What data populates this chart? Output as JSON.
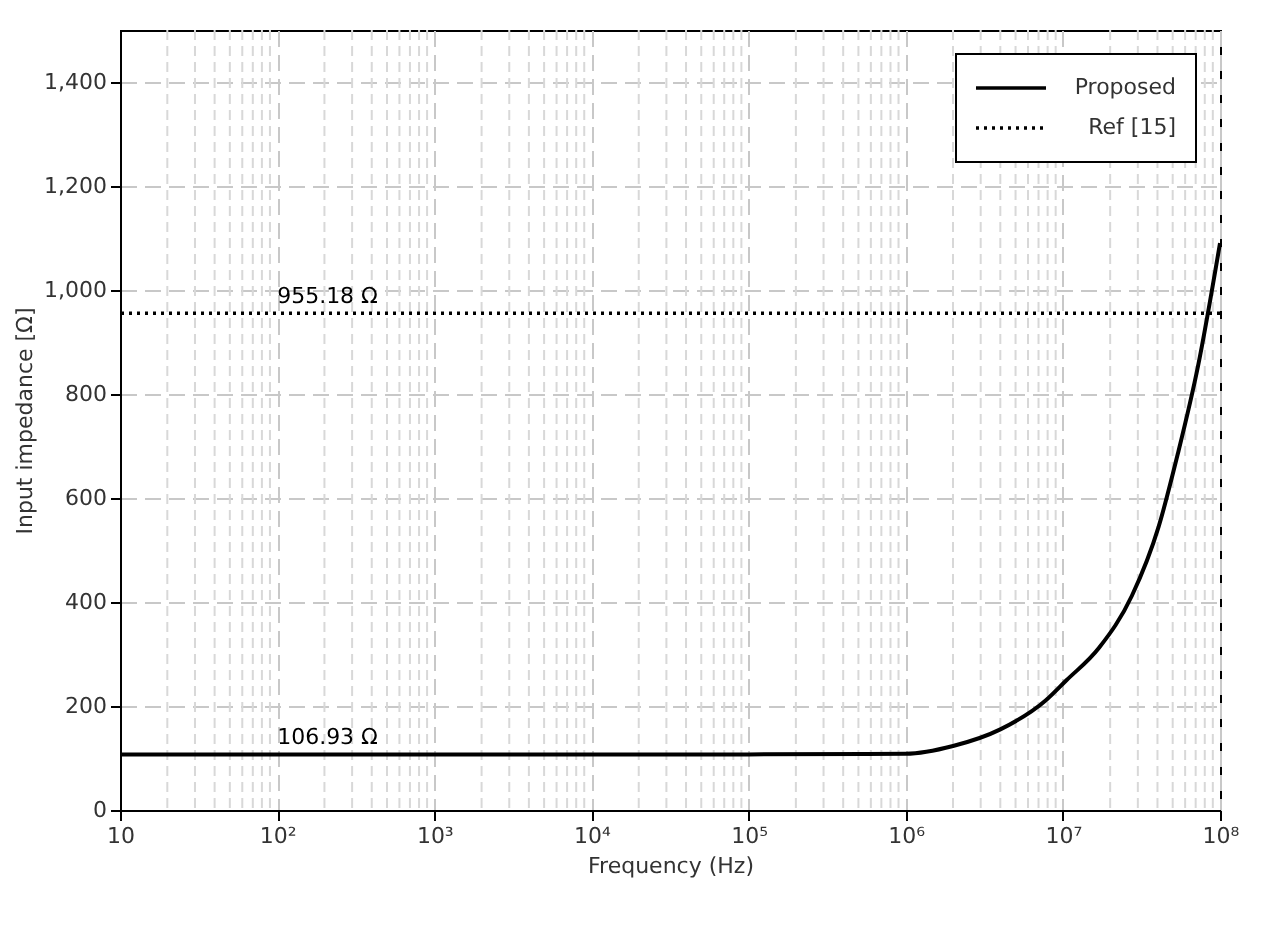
{
  "chart_data": {
    "type": "line",
    "xlabel": "Frequency (Hz)",
    "ylabel": "Input impedance [Ω]",
    "log": "x",
    "grid": true,
    "legend": "top right",
    "line_style": "solid",
    "marker": "none",
    "xlim": [
      10,
      100000000
    ],
    "xticks": [
      10,
      {
        "value": 100,
        "label": "10²"
      },
      {
        "value": 1000,
        "label": "10³"
      },
      {
        "value": 10000,
        "label": "10⁴"
      },
      {
        "value": 100000,
        "label": "10⁵"
      },
      {
        "value": 1000000,
        "label": "10⁶"
      },
      {
        "value": 10000000,
        "label": "10⁷"
      },
      {
        "value": 100000000,
        "label": "10⁸"
      }
    ],
    "ylim": [
      0,
      1500
    ],
    "yticks": [
      0,
      200,
      400,
      600,
      800,
      {
        "value": 1000,
        "label": "1,000"
      },
      {
        "value": 1200,
        "label": "1,200"
      },
      {
        "value": 1400,
        "label": "1,400"
      }
    ],
    "series": [
      {
        "name": "Proposed",
        "color": "#000000",
        "x": [
          10,
          100,
          1000,
          10000,
          100000,
          1000000,
          2000000,
          4000000,
          7800000,
          10500000,
          17000000,
          27500000,
          40700000,
          53700000,
          72400000,
          100000000
        ],
        "values": [
          106.93,
          106.93,
          106.93,
          106.93,
          106.93,
          108,
          123,
          155,
          211,
          249,
          312,
          412,
          545,
          683,
          853,
          1090
        ]
      }
    ],
    "ref_lines": [
      {
        "axis": "y",
        "value": 955.18,
        "label": "Ref [15]",
        "color": "#000000",
        "line_style": "dotted"
      }
    ],
    "annotations": [
      {
        "text": "955.18 Ω",
        "x": 100,
        "y": 955.18
      },
      {
        "text": "106.93 Ω",
        "x": 100,
        "y": 106.93
      }
    ]
  }
}
